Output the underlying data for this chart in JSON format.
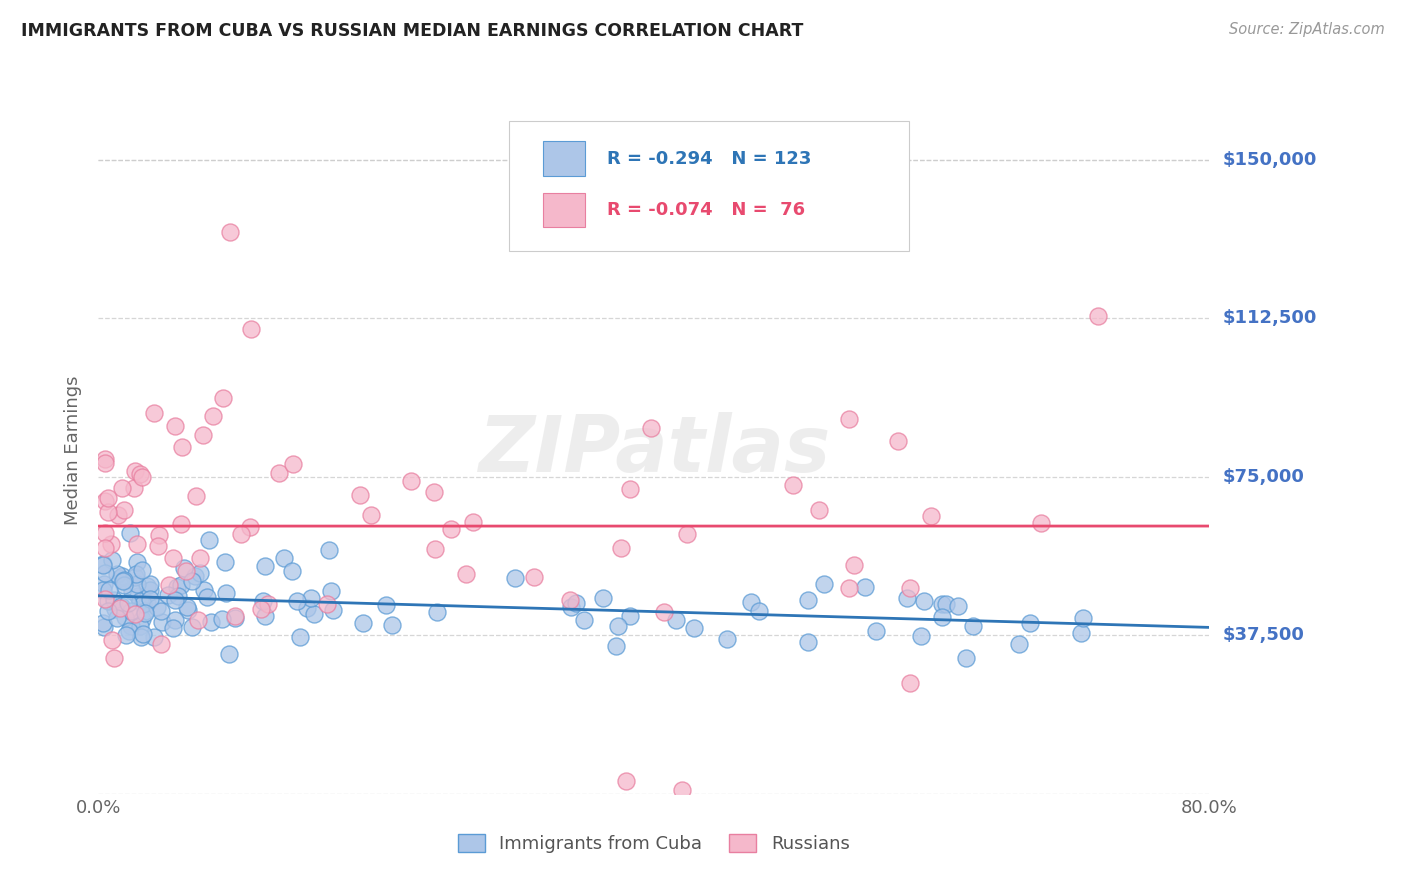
{
  "title": "IMMIGRANTS FROM CUBA VS RUSSIAN MEDIAN EARNINGS CORRELATION CHART",
  "source": "Source: ZipAtlas.com",
  "ylabel": "Median Earnings",
  "y_ticks": [
    0,
    37500,
    75000,
    112500,
    150000
  ],
  "y_tick_labels": [
    "",
    "$37,500",
    "$75,000",
    "$112,500",
    "$150,000"
  ],
  "xlim": [
    0.0,
    80.0
  ],
  "ylim": [
    0,
    162500
  ],
  "cuba_R": "-0.294",
  "cuba_N": "123",
  "russian_R": "-0.074",
  "russian_N": "76",
  "cuba_color": "#adc6e8",
  "cuba_edge": "#5b9bd5",
  "russian_color": "#f5b8cb",
  "russian_edge": "#e87fa0",
  "trend_cuba_color": "#2e75b6",
  "trend_russian_color": "#e84a6f",
  "legend_label_cuba": "Immigrants from Cuba",
  "legend_label_russian": "Russians",
  "watermark": "ZIPatlas",
  "background_color": "#ffffff",
  "grid_color": "#cccccc",
  "title_color": "#222222",
  "right_label_color": "#4472c4",
  "right_label_color2": "#4472c4"
}
